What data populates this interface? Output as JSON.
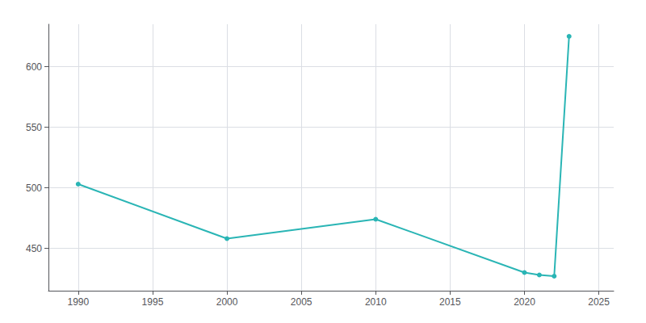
{
  "chart_data": {
    "type": "line",
    "x": [
      1990,
      2000,
      2010,
      2020,
      2021,
      2022,
      2023
    ],
    "values": [
      503,
      458,
      474,
      430,
      428,
      427,
      625
    ],
    "color": "#2ab5b5",
    "marker": "circle",
    "xlim": [
      1988,
      2026
    ],
    "xticks": [
      1990,
      1995,
      2000,
      2005,
      2010,
      2015,
      2020,
      2025
    ],
    "ylim": [
      415,
      635
    ],
    "yticks": [
      450,
      500,
      550,
      600
    ],
    "grid": true
  }
}
